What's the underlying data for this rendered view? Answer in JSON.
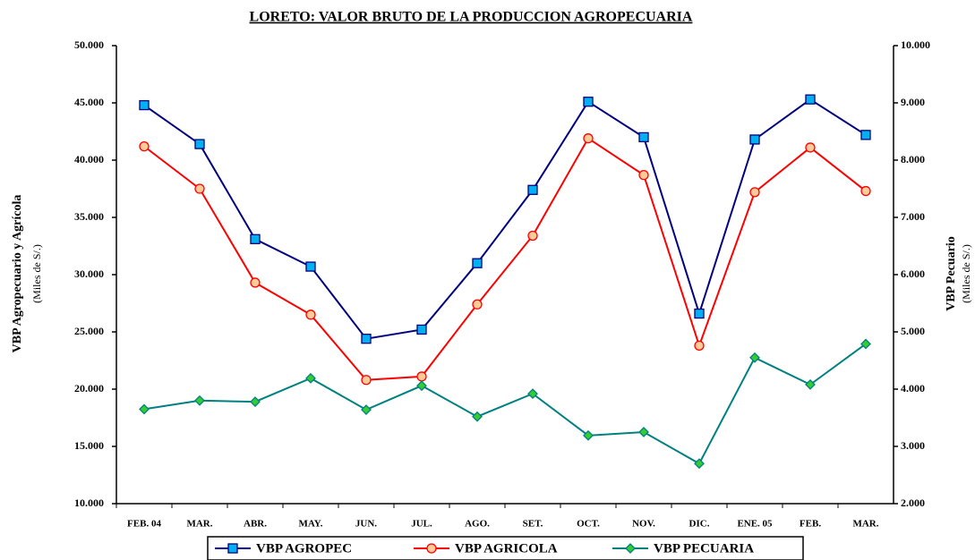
{
  "chart_data": {
    "type": "line",
    "title": "LORETO: VALOR BRUTO DE LA PRODUCCION AGROPECUARIA",
    "y_label": "VBP Agropecuario y Agrícola",
    "y_unit": "(Miles de S/.)",
    "y2_label": "VBP Pecuario",
    "y2_unit": "(Miles de S/.)",
    "categories": [
      "FEB. 04",
      "MAR.",
      "ABR.",
      "MAY.",
      "JUN.",
      "JUL.",
      "AGO.",
      "SET.",
      "OCT.",
      "NOV.",
      "DIC.",
      "ENE. 05",
      "FEB.",
      "MAR."
    ],
    "ylim": [
      10000,
      50000
    ],
    "yticks": [
      {
        "value": 10000,
        "label": "10.000"
      },
      {
        "value": 15000,
        "label": "15.000"
      },
      {
        "value": 20000,
        "label": "20.000"
      },
      {
        "value": 25000,
        "label": "25.000"
      },
      {
        "value": 30000,
        "label": "30.000"
      },
      {
        "value": 35000,
        "label": "35.000"
      },
      {
        "value": 40000,
        "label": "40.000"
      },
      {
        "value": 45000,
        "label": "45.000"
      },
      {
        "value": 50000,
        "label": "50.000"
      }
    ],
    "y2lim": [
      2000,
      10000
    ],
    "y2ticks": [
      {
        "value": 2000,
        "label": "2.000"
      },
      {
        "value": 3000,
        "label": "3.000"
      },
      {
        "value": 4000,
        "label": "4.000"
      },
      {
        "value": 5000,
        "label": "5.000"
      },
      {
        "value": 6000,
        "label": "6.000"
      },
      {
        "value": 7000,
        "label": "7.000"
      },
      {
        "value": 8000,
        "label": "8.000"
      },
      {
        "value": 9000,
        "label": "9.000"
      },
      {
        "value": 10000,
        "label": "10.000"
      }
    ],
    "grid": false,
    "series": [
      {
        "name": "VBP AGROPEC",
        "color": "#000080",
        "marker": "square",
        "marker_color": "#00b0f0",
        "values": [
          44800,
          41400,
          33100,
          30700,
          24400,
          25200,
          31000,
          37400,
          45100,
          42000,
          26600,
          41800,
          45300,
          42200
        ]
      },
      {
        "name": "VBP AGRICOLA",
        "color": "#ff0000",
        "marker": "circle",
        "marker_color": "#ffcc99",
        "values": [
          41200,
          37500,
          29300,
          26500,
          20800,
          21100,
          27400,
          33400,
          41900,
          38700,
          23800,
          37200,
          41100,
          37300
        ]
      },
      {
        "name": "VBP PECUARIA",
        "color": "#008080",
        "marker": "diamond",
        "marker_color": "#33cc33",
        "axis": "y2",
        "values": [
          3650,
          3800,
          3780,
          4190,
          3640,
          4060,
          3520,
          3920,
          3190,
          3250,
          2700,
          4550,
          4080,
          4790
        ]
      }
    ]
  }
}
